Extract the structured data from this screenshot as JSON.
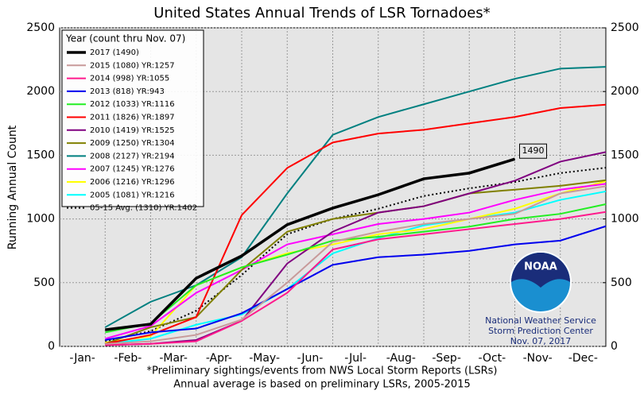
{
  "chart_data": {
    "type": "line",
    "title": "United States Annual Trends of LSR Tornadoes*",
    "ylabel": "Running Annual Count",
    "footnotes": [
      "*Preliminary sightings/events from NWS Local Storm Reports (LSRs)",
      "Annual average is based on preliminary LSRs, 2005-2015"
    ],
    "legend_title": "Year (count thru Nov. 07)",
    "legend": "upper left",
    "grid": true,
    "categories": [
      "-Jan-",
      "-Feb-",
      "-Mar-",
      "-Apr-",
      "-May-",
      "-Jun-",
      "-Jul-",
      "-Aug-",
      "-Sep-",
      "-Oct-",
      "-Nov-",
      "-Dec-"
    ],
    "ylim": [
      0,
      2500
    ],
    "yticks": [
      0,
      500,
      1000,
      1500,
      2000,
      2500
    ],
    "y2lim": [
      0,
      2500
    ],
    "y2ticks": [
      0,
      500,
      1000,
      1500,
      2000,
      2500
    ],
    "annotation": "1490",
    "logo_text": "NOAA",
    "credits": [
      "National Weather Service",
      "Storm Prediction Center",
      "Nov. 07, 2017"
    ],
    "series": [
      {
        "name": "2017 (1490)",
        "color": "#000000",
        "width": 3.5,
        "values": [
          130,
          175,
          535,
          710,
          955,
          1085,
          1190,
          1315,
          1360,
          1470,
          null,
          null
        ]
      },
      {
        "name": "2015 (1080) YR:1257",
        "color": "#c89a9a",
        "values": [
          20,
          40,
          90,
          210,
          500,
          820,
          900,
          960,
          1000,
          1040,
          1200,
          1257
        ]
      },
      {
        "name": "2014 (998) YR:1055",
        "color": "#ff1a8c",
        "values": [
          10,
          20,
          40,
          200,
          420,
          760,
          840,
          880,
          920,
          960,
          1000,
          1055
        ]
      },
      {
        "name": "2013 (818) YR:943",
        "color": "#0000ee",
        "values": [
          50,
          110,
          140,
          260,
          450,
          640,
          700,
          720,
          750,
          800,
          830,
          943
        ]
      },
      {
        "name": "2012 (1033) YR:1116",
        "color": "#22ee22",
        "values": [
          110,
          180,
          480,
          620,
          720,
          830,
          860,
          900,
          940,
          1000,
          1040,
          1116
        ]
      },
      {
        "name": "2011 (1826) YR:1897",
        "color": "#ff0000",
        "values": [
          20,
          90,
          230,
          1030,
          1400,
          1600,
          1670,
          1700,
          1750,
          1800,
          1870,
          1897
        ]
      },
      {
        "name": "2010 (1419) YR:1525",
        "color": "#800080",
        "values": [
          10,
          20,
          50,
          200,
          650,
          900,
          1050,
          1100,
          1200,
          1300,
          1450,
          1525
        ]
      },
      {
        "name": "2009 (1250) YR:1304",
        "color": "#808000",
        "values": [
          20,
          150,
          230,
          600,
          900,
          1000,
          1050,
          1100,
          1200,
          1230,
          1260,
          1304
        ]
      },
      {
        "name": "2008 (2127) YR:2194",
        "color": "#008080",
        "values": [
          150,
          350,
          480,
          700,
          1200,
          1660,
          1800,
          1900,
          2000,
          2100,
          2180,
          2194
        ]
      },
      {
        "name": "2007 (1245) YR:1276",
        "color": "#ff00ff",
        "values": [
          60,
          160,
          420,
          600,
          800,
          880,
          960,
          1000,
          1050,
          1150,
          1230,
          1276
        ]
      },
      {
        "name": "2006 (1216) YR:1296",
        "color": "#ffff00",
        "values": [
          30,
          80,
          480,
          620,
          730,
          800,
          880,
          920,
          1000,
          1080,
          1200,
          1296
        ]
      },
      {
        "name": "2005 (1081) YR:1216",
        "color": "#00ffff",
        "values": [
          20,
          60,
          170,
          250,
          450,
          730,
          850,
          950,
          1000,
          1050,
          1150,
          1216
        ]
      },
      {
        "name": "05-15 Avg. (1310) YR:1402",
        "color": "#000000",
        "dash": true,
        "values": [
          40,
          120,
          280,
          560,
          880,
          1000,
          1080,
          1180,
          1240,
          1290,
          1360,
          1402
        ]
      }
    ]
  }
}
